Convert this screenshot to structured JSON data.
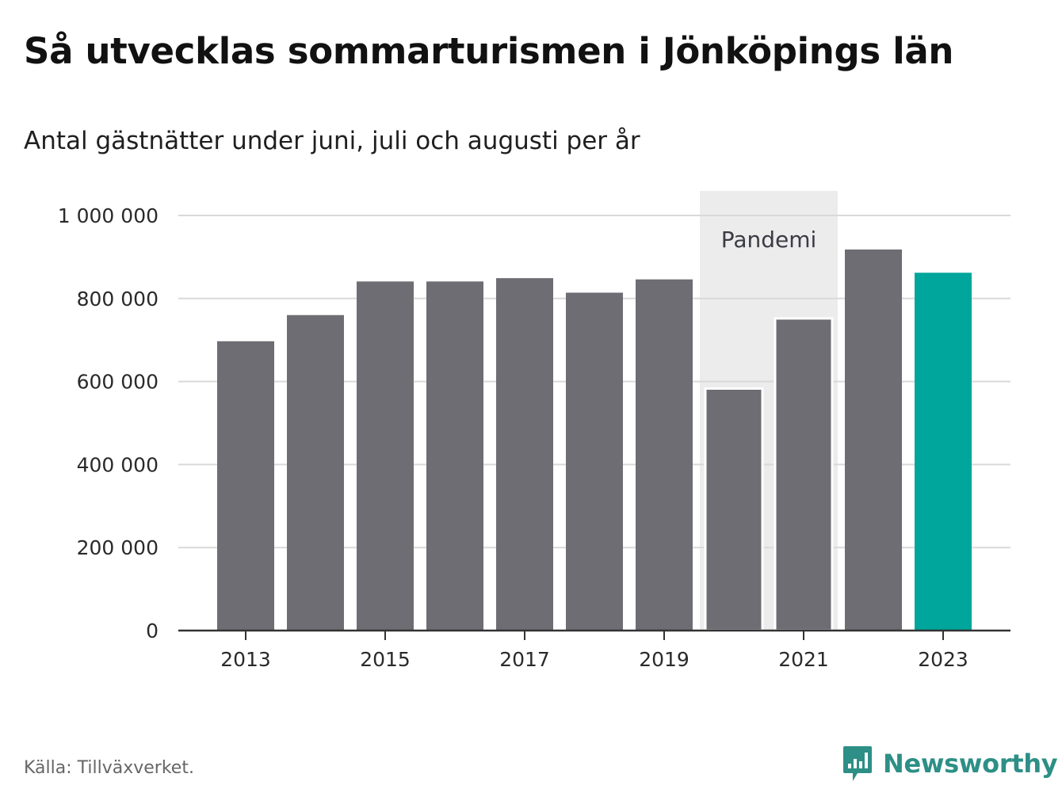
{
  "title": "Så utvecklas sommarturismen i Jönköpings län",
  "subtitle": "Antal gästnätter under juni, juli och augusti per år",
  "source": "Källa: Tillväxverket.",
  "brand": {
    "name": "Newsworthy",
    "icon": "newsworthy-logo-icon",
    "color": "#2d8f86"
  },
  "colors": {
    "bar": "#6e6d73",
    "highlight": "#00a59b",
    "band": "#ececec",
    "grid": "#d9d9d9",
    "axis": "#333333"
  },
  "chart_data": {
    "type": "bar",
    "categories": [
      "2013",
      "2014",
      "2015",
      "2016",
      "2017",
      "2018",
      "2019",
      "2020",
      "2021",
      "2022",
      "2023"
    ],
    "values": [
      697000,
      760000,
      841000,
      841000,
      849000,
      814000,
      846000,
      583000,
      752000,
      918000,
      862000
    ],
    "highlight_index": 10,
    "x_tick_labels": [
      "2013",
      "2015",
      "2017",
      "2019",
      "2021",
      "2023"
    ],
    "y_ticks": [
      0,
      200000,
      400000,
      600000,
      800000,
      1000000
    ],
    "y_tick_labels": [
      "0",
      "200 000",
      "400 000",
      "600 000",
      "800 000",
      "1 000 000"
    ],
    "ylim": [
      0,
      1000000
    ],
    "grid": true,
    "annotation": {
      "label": "Pandemi",
      "from": "2020",
      "to": "2021"
    }
  }
}
